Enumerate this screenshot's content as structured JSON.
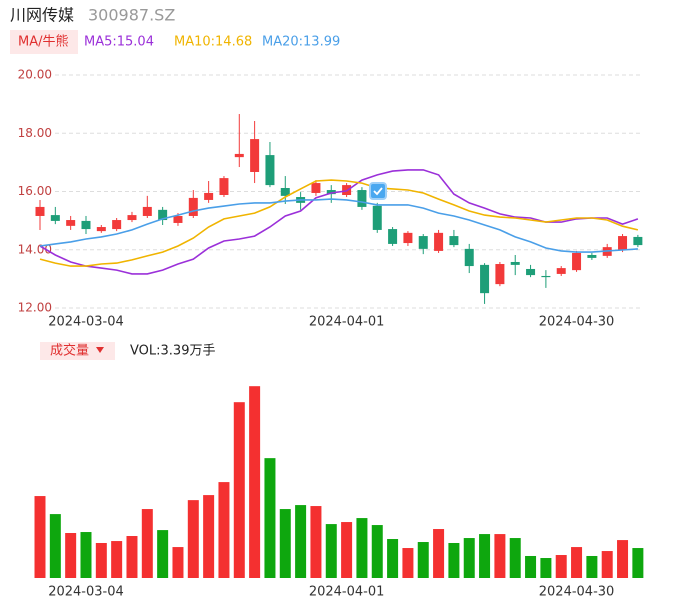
{
  "header": {
    "name": "川网传媒",
    "code": "300987.SZ",
    "indicator_button": "MA/牛熊"
  },
  "chart_data": {
    "type": "candlestick",
    "categories": [
      null,
      null,
      null,
      "2024-03-04",
      null,
      null,
      null,
      null,
      null,
      null,
      null,
      null,
      null,
      null,
      null,
      null,
      null,
      null,
      null,
      null,
      "2024-04-01",
      null,
      null,
      null,
      null,
      null,
      null,
      null,
      null,
      null,
      null,
      null,
      null,
      null,
      null,
      "2024-04-30",
      null,
      null,
      null,
      null
    ],
    "open": [
      15.16,
      15.19,
      14.82,
      14.99,
      14.64,
      14.71,
      15.02,
      15.16,
      15.37,
      14.92,
      15.16,
      15.71,
      15.88,
      17.18,
      16.67,
      17.25,
      16.12,
      15.81,
      15.95,
      16.05,
      15.88,
      16.05,
      15.51,
      14.71,
      14.23,
      14.47,
      13.96,
      14.47,
      14.03,
      13.48,
      12.82,
      13.58,
      13.34,
      13.1,
      13.17,
      13.3,
      13.82,
      13.79,
      13.99,
      14.44
    ],
    "high": [
      15.71,
      15.47,
      15.16,
      15.16,
      14.85,
      15.09,
      15.3,
      15.85,
      15.47,
      15.26,
      16.05,
      16.36,
      16.53,
      18.66,
      18.42,
      17.7,
      16.53,
      15.98,
      16.39,
      16.22,
      16.29,
      16.15,
      15.61,
      14.78,
      14.64,
      14.54,
      14.68,
      14.68,
      14.2,
      13.54,
      13.58,
      13.82,
      13.48,
      13.3,
      13.44,
      13.96,
      13.89,
      14.2,
      14.54,
      14.51
    ],
    "low": [
      14.68,
      14.88,
      14.68,
      14.54,
      14.58,
      14.64,
      14.95,
      15.09,
      14.85,
      14.82,
      15.09,
      15.61,
      15.81,
      16.84,
      16.29,
      16.15,
      15.57,
      15.37,
      15.85,
      15.61,
      15.81,
      15.37,
      14.58,
      14.13,
      14.13,
      13.85,
      13.89,
      14.09,
      13.2,
      12.14,
      12.75,
      13.13,
      13.06,
      12.69,
      13.1,
      13.24,
      13.65,
      13.72,
      13.92,
      14.09
    ],
    "close": [
      15.47,
      14.99,
      15.02,
      14.71,
      14.78,
      15.02,
      15.19,
      15.47,
      15.02,
      15.16,
      15.78,
      15.95,
      16.46,
      17.29,
      17.8,
      16.22,
      15.85,
      15.61,
      16.29,
      15.91,
      16.22,
      15.47,
      14.68,
      14.2,
      14.58,
      14.03,
      14.58,
      14.16,
      13.44,
      12.51,
      13.51,
      13.48,
      13.13,
      13.06,
      13.37,
      13.89,
      13.72,
      14.09,
      14.47,
      14.16
    ],
    "up_color": "#f23a3a",
    "down_color": "#1e9e78",
    "series": [
      {
        "name": "MA5:15.04",
        "color": "#9b30d9",
        "values": [
          14.13,
          13.82,
          13.58,
          13.44,
          13.37,
          13.3,
          13.17,
          13.17,
          13.3,
          13.51,
          13.68,
          14.06,
          14.3,
          14.37,
          14.47,
          14.78,
          15.16,
          15.33,
          15.78,
          15.95,
          16.02,
          16.39,
          16.57,
          16.7,
          16.74,
          16.74,
          16.57,
          15.91,
          15.61,
          15.43,
          15.23,
          15.12,
          15.09,
          14.95,
          14.95,
          15.06,
          15.09,
          15.09,
          14.88,
          15.06
        ]
      },
      {
        "name": "MA10:14.68",
        "color": "#f0b400",
        "values": [
          13.68,
          13.54,
          13.44,
          13.44,
          13.51,
          13.54,
          13.65,
          13.79,
          13.92,
          14.13,
          14.4,
          14.78,
          15.06,
          15.16,
          15.26,
          15.47,
          15.81,
          16.09,
          16.36,
          16.39,
          16.36,
          16.29,
          16.12,
          16.09,
          16.05,
          15.95,
          15.74,
          15.54,
          15.33,
          15.19,
          15.12,
          15.09,
          15.02,
          14.95,
          15.02,
          15.09,
          15.09,
          15.02,
          14.81,
          14.68
        ]
      },
      {
        "name": "MA20:13.99",
        "color": "#4a9fe8",
        "values": [
          14.13,
          14.2,
          14.27,
          14.37,
          14.44,
          14.54,
          14.68,
          14.88,
          15.06,
          15.19,
          15.33,
          15.43,
          15.5,
          15.57,
          15.61,
          15.61,
          15.67,
          15.71,
          15.71,
          15.74,
          15.71,
          15.64,
          15.54,
          15.54,
          15.54,
          15.43,
          15.26,
          15.16,
          15.02,
          14.85,
          14.68,
          14.44,
          14.27,
          14.06,
          13.96,
          13.92,
          13.92,
          13.96,
          13.99,
          14.03
        ]
      }
    ],
    "ylim": [
      12,
      20
    ],
    "yticks": [
      {
        "value": 12,
        "label": "12.00"
      },
      {
        "value": 14,
        "label": "14.00"
      },
      {
        "value": 16,
        "label": "16.00"
      },
      {
        "value": 18,
        "label": "18.00"
      },
      {
        "value": 20,
        "label": "20.00"
      }
    ],
    "grid": true,
    "volume": {
      "label": "成交量",
      "summary": "VOL:3.39万手",
      "up_color": "#f43030",
      "down_color": "#0ea70e",
      "ylim": [
        0,
        22.4
      ],
      "values": [
        9.27,
        7.23,
        5.09,
        5.2,
        3.96,
        4.18,
        4.75,
        7.8,
        5.42,
        3.5,
        8.81,
        9.38,
        10.85,
        19.89,
        21.7,
        13.56,
        7.8,
        8.25,
        8.14,
        6.1,
        6.33,
        6.78,
        5.99,
        4.41,
        3.39,
        4.07,
        5.54,
        3.96,
        4.52,
        4.97,
        4.97,
        4.52,
        2.49,
        2.26,
        2.6,
        3.5,
        2.49,
        3.05,
        4.29,
        3.39
      ]
    }
  }
}
